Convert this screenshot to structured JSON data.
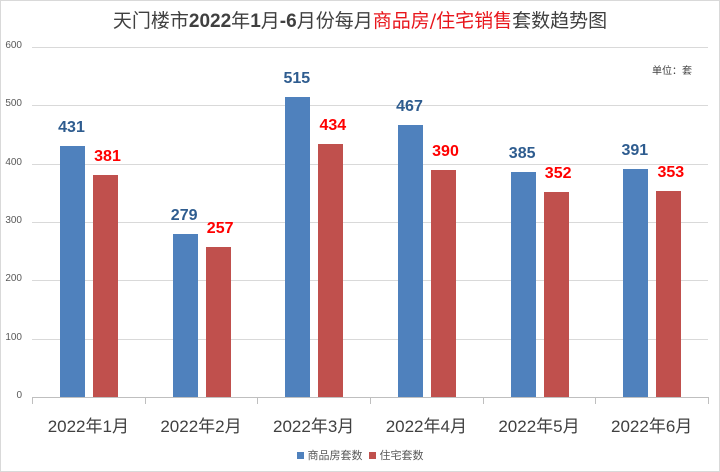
{
  "title": {
    "part1": "天门楼市",
    "part2": "2022",
    "part3": "年",
    "part4": "1",
    "part5": "月",
    "part6": "-6",
    "part7": "月份每月",
    "highlight": "商品房/住宅销售",
    "part8": "套数趋势图"
  },
  "unit_label": "单位：套",
  "colors": {
    "series1": "#4f81bd",
    "series2": "#c0504d",
    "label1": "#2e5c8f",
    "label2": "#ff0000",
    "title_highlight": "#e8161c"
  },
  "y_ticks": [
    "0",
    "100",
    "200",
    "300",
    "400",
    "500",
    "600"
  ],
  "legend": [
    {
      "label": "商品房套数",
      "color": "#4f81bd"
    },
    {
      "label": "住宅套数",
      "color": "#c0504d"
    }
  ],
  "chart_data": {
    "type": "bar",
    "title": "天门楼市2022年1月-6月份每月商品房/住宅销售套数趋势图",
    "categories": [
      "2022年1月",
      "2022年2月",
      "2022年3月",
      "2022年4月",
      "2022年5月",
      "2022年6月"
    ],
    "series": [
      {
        "name": "商品房套数",
        "values": [
          431,
          279,
          515,
          467,
          385,
          391
        ],
        "color": "#4f81bd"
      },
      {
        "name": "住宅套数",
        "values": [
          381,
          257,
          434,
          390,
          352,
          353
        ],
        "color": "#c0504d"
      }
    ],
    "xlabel": "",
    "ylabel": "",
    "ylim": [
      0,
      600
    ],
    "yticks": [
      0,
      100,
      200,
      300,
      400,
      500,
      600
    ],
    "grid": true,
    "legend_position": "bottom",
    "annotations": [
      "单位：套"
    ],
    "data_labels": true
  }
}
